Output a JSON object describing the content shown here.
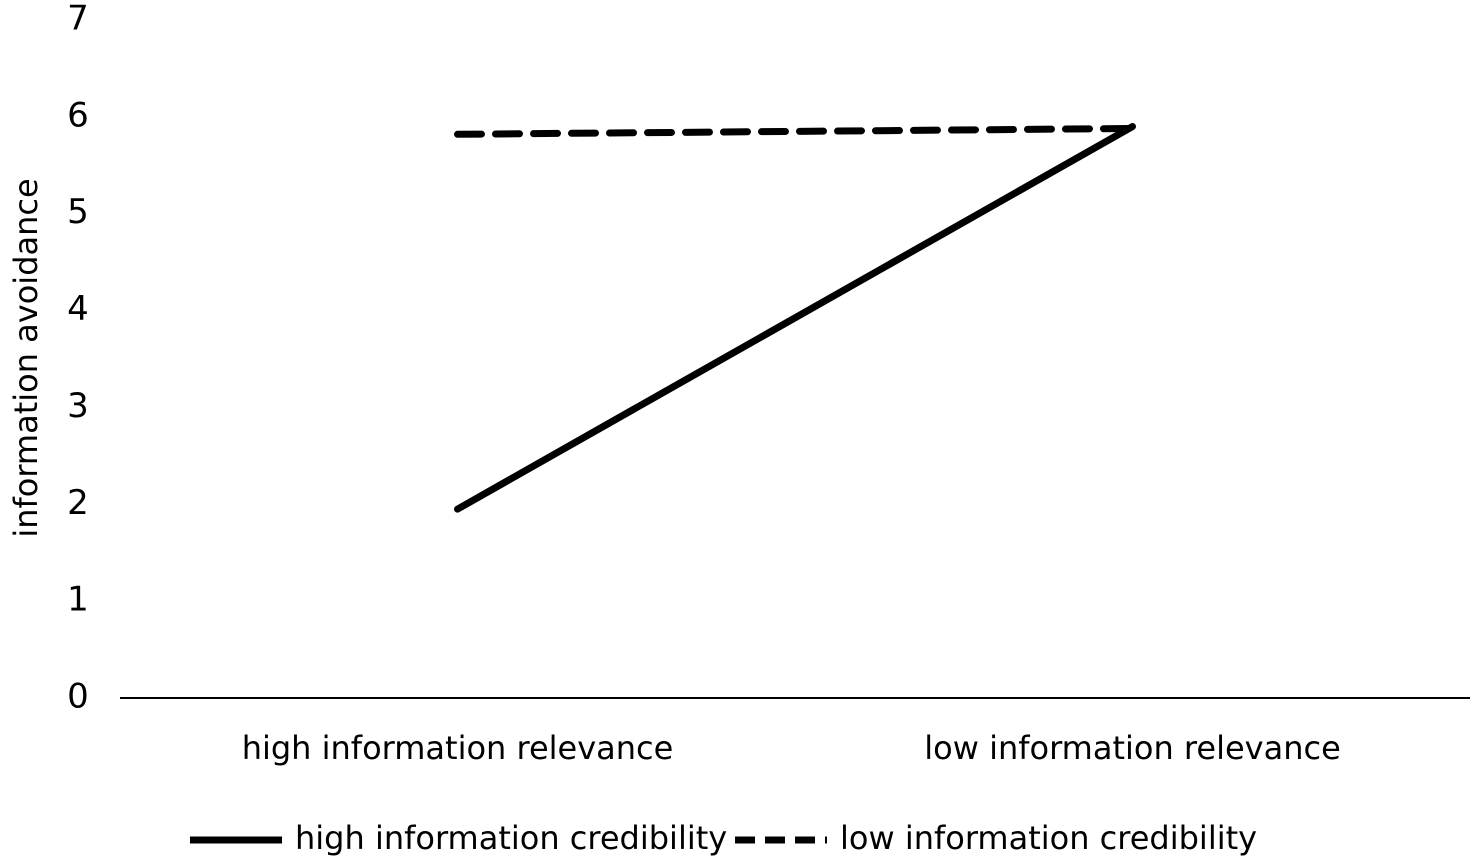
{
  "chart_data": {
    "type": "line",
    "y_label": "information avoidance",
    "categories": [
      "high information relevance",
      "low information relevance"
    ],
    "series": [
      {
        "name": "high information credibility",
        "color": "#000000",
        "dash": "solid",
        "values": [
          1.95,
          5.9
        ]
      },
      {
        "name": "low information credibility",
        "color": "#000000",
        "dash": "dashed",
        "values": [
          5.82,
          5.88
        ]
      }
    ],
    "ylim": [
      0,
      7
    ],
    "yticks": [
      0,
      1,
      2,
      3,
      4,
      5,
      6,
      7
    ],
    "grid": false,
    "legend": "bottom"
  }
}
